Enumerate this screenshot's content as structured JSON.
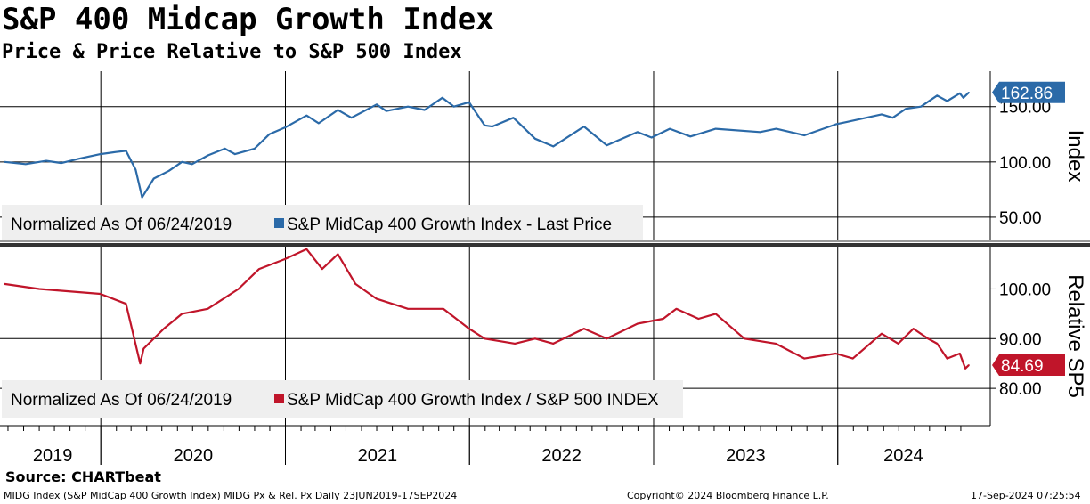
{
  "header": {
    "title": "S&P 400 Midcap Growth Index",
    "subtitle": "Price & Price Relative to S&P 500 Index"
  },
  "footer": {
    "source": "Source: CHARTbeat",
    "left": "MIDG Index (S&P MidCap 400 Growth Index) MIDG Px & Rel. Px  Daily 23JUN2019-17SEP2024",
    "center": "Copyright© 2024 Bloomberg Finance L.P.",
    "right": "17-Sep-2024 07:25:54"
  },
  "colors": {
    "price": "#2b6aa8",
    "relative": "#c0152a",
    "grid": "#000000",
    "legend_bg": "#efefef"
  },
  "chart_data": [
    {
      "type": "line",
      "name": "price-panel",
      "axis_title": "Index",
      "legend_prefix": "Normalized As Of 06/24/2019",
      "legend_label": "S&P MidCap 400 Growth Index - Last Price",
      "yticks": [
        50,
        100,
        150
      ],
      "ytick_labels": [
        "50.00",
        "100.00",
        "150.00"
      ],
      "ylim": [
        29,
        182
      ],
      "last_value": 162.86,
      "last_label": "162.86",
      "series": [
        {
          "name": "S&P MidCap 400 Growth Index - Last Price",
          "x": [
            "2019-06-24",
            "2019-08-05",
            "2019-09-15",
            "2019-10-15",
            "2019-11-20",
            "2019-12-31",
            "2020-01-31",
            "2020-02-20",
            "2020-03-10",
            "2020-03-23",
            "2020-04-15",
            "2020-05-15",
            "2020-06-10",
            "2020-06-30",
            "2020-08-01",
            "2020-09-03",
            "2020-09-23",
            "2020-11-01",
            "2020-11-30",
            "2020-12-31",
            "2021-02-12",
            "2021-03-08",
            "2021-04-15",
            "2021-05-12",
            "2021-07-01",
            "2021-07-20",
            "2021-09-01",
            "2021-10-04",
            "2021-11-08",
            "2021-12-01",
            "2021-12-31",
            "2022-01-31",
            "2022-02-15",
            "2022-03-29",
            "2022-05-11",
            "2022-06-16",
            "2022-08-16",
            "2022-09-30",
            "2022-11-30",
            "2022-12-28",
            "2023-02-02",
            "2023-03-15",
            "2023-05-04",
            "2023-07-31",
            "2023-09-01",
            "2023-10-27",
            "2023-12-28",
            "2024-01-18",
            "2024-03-28",
            "2024-04-19",
            "2024-05-15",
            "2024-06-14",
            "2024-07-16",
            "2024-08-05",
            "2024-08-30",
            "2024-09-06",
            "2024-09-17"
          ],
          "y": [
            100,
            98,
            101,
            99,
            103,
            107,
            109,
            110,
            93,
            68,
            85,
            92,
            100,
            98,
            106,
            112,
            107,
            112,
            125,
            131,
            142,
            135,
            147,
            140,
            152,
            146,
            150,
            147,
            158,
            150,
            154,
            133,
            132,
            140,
            121,
            114,
            132,
            115,
            127,
            122,
            130,
            123,
            130,
            127,
            130,
            124,
            134,
            136,
            143,
            140,
            148,
            150,
            160,
            155,
            162,
            158,
            162.86
          ]
        }
      ]
    },
    {
      "type": "line",
      "name": "relative-panel",
      "axis_title": "Relative SP5",
      "legend_prefix": "Normalized As Of 06/24/2019",
      "legend_label": "S&P MidCap 400 Growth Index / S&P 500 INDEX",
      "yticks": [
        80,
        90,
        100
      ],
      "ytick_labels": [
        "80.00",
        "90.00",
        "100.00"
      ],
      "ylim": [
        72.5,
        108.5
      ],
      "last_value": 84.69,
      "last_label": "84.69",
      "series": [
        {
          "name": "S&P MidCap 400 Growth Index / S&P 500 INDEX",
          "x": [
            "2019-06-24",
            "2019-09-01",
            "2019-12-31",
            "2020-02-20",
            "2020-03-19",
            "2020-03-26",
            "2020-05-05",
            "2020-06-10",
            "2020-07-31",
            "2020-09-30",
            "2020-11-10",
            "2020-12-31",
            "2021-02-12",
            "2021-03-15",
            "2021-04-15",
            "2021-05-20",
            "2021-07-01",
            "2021-09-01",
            "2021-11-10",
            "2021-12-31",
            "2022-01-31",
            "2022-04-01",
            "2022-05-11",
            "2022-06-16",
            "2022-08-16",
            "2022-09-30",
            "2022-11-30",
            "2023-01-20",
            "2023-02-15",
            "2023-03-31",
            "2023-05-04",
            "2023-06-30",
            "2023-08-31",
            "2023-10-27",
            "2023-12-28",
            "2024-01-31",
            "2024-03-28",
            "2024-04-30",
            "2024-05-30",
            "2024-06-28",
            "2024-07-16",
            "2024-08-05",
            "2024-08-30",
            "2024-09-10",
            "2024-09-17"
          ],
          "y": [
            101,
            100,
            99,
            97,
            85,
            88,
            92,
            95,
            96,
            100,
            104,
            106,
            108,
            104,
            107,
            101,
            98,
            96,
            96,
            92,
            90,
            89,
            90,
            89,
            92,
            90,
            93,
            94,
            96,
            94,
            95,
            90,
            89,
            86,
            87,
            86,
            91,
            89,
            92,
            90,
            89,
            86,
            87,
            84,
            84.69
          ]
        }
      ]
    }
  ],
  "x_axis": {
    "years": [
      "2019",
      "2020",
      "2021",
      "2022",
      "2023",
      "2024"
    ]
  }
}
